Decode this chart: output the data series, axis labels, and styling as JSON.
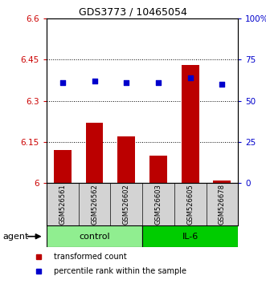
{
  "title": "GDS3773 / 10465054",
  "samples": [
    "GSM526561",
    "GSM526562",
    "GSM526602",
    "GSM526603",
    "GSM526605",
    "GSM526678"
  ],
  "bar_values": [
    6.12,
    6.22,
    6.17,
    6.1,
    6.43,
    6.01
  ],
  "percentile_values": [
    61,
    62,
    61,
    61,
    64,
    60
  ],
  "ylim_left": [
    6.0,
    6.6
  ],
  "ylim_right": [
    0,
    100
  ],
  "yticks_left": [
    6.0,
    6.15,
    6.3,
    6.45,
    6.6
  ],
  "ytick_labels_left": [
    "6",
    "6.15",
    "6.3",
    "6.45",
    "6.6"
  ],
  "yticks_right": [
    0,
    25,
    50,
    75,
    100
  ],
  "ytick_labels_right": [
    "0",
    "25",
    "50",
    "75",
    "100%"
  ],
  "group_info": [
    {
      "label": "control",
      "start": 0,
      "end": 3,
      "color": "#90EE90"
    },
    {
      "label": "IL-6",
      "start": 3,
      "end": 6,
      "color": "#00CC00"
    }
  ],
  "bar_color": "#BB0000",
  "dot_color": "#0000CC",
  "bar_width": 0.55,
  "legend_items": [
    {
      "label": "transformed count",
      "color": "#BB0000"
    },
    {
      "label": "percentile rank within the sample",
      "color": "#0000CC"
    }
  ],
  "background_color": "#ffffff",
  "tick_label_color_left": "#CC0000",
  "tick_label_color_right": "#0000CC",
  "sample_box_color": "#D3D3D3",
  "agent_label": "agent"
}
